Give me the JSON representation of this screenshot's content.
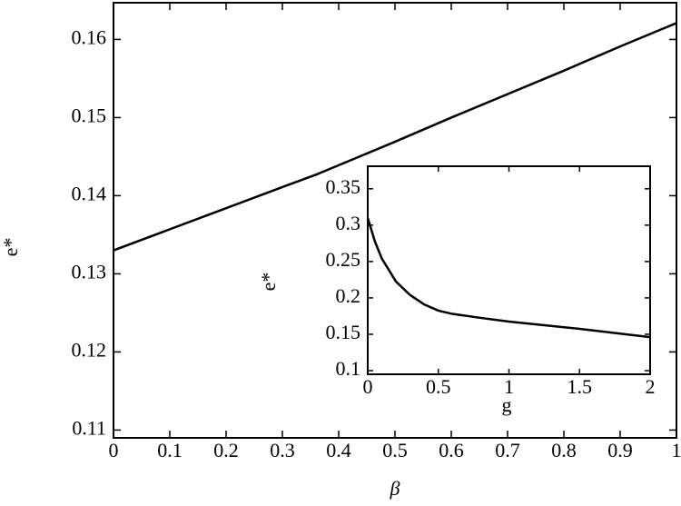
{
  "chart_data": [
    {
      "type": "line",
      "x_label": "β",
      "y_label": "e*",
      "x": [
        0,
        0.1,
        0.2,
        0.3,
        0.36,
        0.4,
        0.5,
        0.6,
        0.7,
        0.8,
        0.9,
        1
      ],
      "series": [
        {
          "color": "#000000",
          "values": [
            0.133,
            0.1357,
            0.1384,
            0.1411,
            0.1427,
            0.1439,
            0.1469,
            0.15,
            0.153,
            0.156,
            0.1591,
            0.1621
          ]
        }
      ],
      "xlim": [
        0,
        1
      ],
      "ylim": [
        0.109,
        0.1647
      ],
      "xticks": [
        0,
        0.1,
        0.2,
        0.3,
        0.4,
        0.5,
        0.6,
        0.7,
        0.8,
        0.9,
        1
      ],
      "yticks": [
        0.11,
        0.12,
        0.13,
        0.14,
        0.15,
        0.16
      ]
    },
    {
      "type": "line",
      "x_label": "g",
      "y_label": "e*",
      "x": [
        0,
        0.05,
        0.1,
        0.2,
        0.3,
        0.4,
        0.5,
        0.6,
        0.8,
        1,
        1.5,
        2
      ],
      "series": [
        {
          "color": "#000000",
          "values": [
            0.31,
            0.278,
            0.254,
            0.2225,
            0.204,
            0.191,
            0.1825,
            0.178,
            0.1725,
            0.1675,
            0.1575,
            0.146
          ]
        }
      ],
      "xlim": [
        0,
        2
      ],
      "ylim": [
        0.095,
        0.381
      ],
      "xticks": [
        0,
        0.5,
        1,
        1.5,
        2
      ],
      "yticks": [
        0.1,
        0.15,
        0.2,
        0.25,
        0.3,
        0.35
      ]
    }
  ]
}
